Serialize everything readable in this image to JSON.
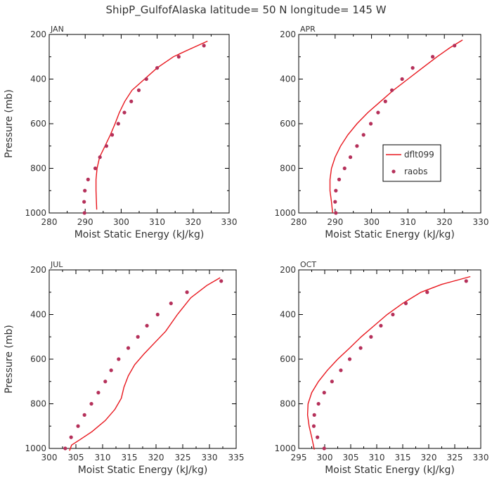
{
  "figure": {
    "title": "ShipP_GulfofAlaska   latitude= 50 N longitude= 145 W",
    "colors": {
      "model": "#e8161d",
      "obs": "#b5305a",
      "axis": "#000000"
    }
  },
  "legend": {
    "entries": [
      "dflt099",
      "raobs"
    ]
  },
  "chart_data": [
    {
      "type": "line",
      "title": "JAN",
      "xlabel": "Moist Static Energy (kJ/kg)",
      "ylabel": "Pressure (mb)",
      "xlim": [
        280,
        330
      ],
      "ylim": [
        1000,
        200
      ],
      "xticks": [
        280,
        290,
        300,
        310,
        320,
        330
      ],
      "yticks": [
        200,
        400,
        600,
        800,
        1000
      ],
      "series": [
        {
          "name": "dflt099",
          "style": "line",
          "x": [
            293.2,
            293.0,
            293.0,
            293.3,
            294.0,
            295.5,
            297.0,
            298.3,
            299.5,
            301.0,
            303.0,
            306.5,
            310.0,
            314.5,
            318.5,
            324.0
          ],
          "y": [
            985,
            900,
            850,
            800,
            750,
            700,
            650,
            600,
            550,
            500,
            450,
            400,
            350,
            300,
            270,
            230
          ]
        },
        {
          "name": "raobs",
          "style": "markers",
          "x": [
            289.8,
            289.7,
            289.9,
            290.8,
            292.8,
            294.1,
            295.9,
            297.5,
            299.2,
            300.9,
            302.8,
            304.9,
            307.0,
            310.0,
            316.0,
            323.0
          ],
          "y": [
            1000,
            950,
            900,
            850,
            800,
            750,
            700,
            650,
            600,
            550,
            500,
            450,
            400,
            350,
            300,
            250
          ]
        }
      ]
    },
    {
      "type": "line",
      "title": "APR",
      "xlabel": "Moist Static Energy (kJ/kg)",
      "ylabel": "",
      "xlim": [
        280,
        330
      ],
      "ylim": [
        1000,
        200
      ],
      "xticks": [
        280,
        290,
        300,
        310,
        320,
        330
      ],
      "yticks": [
        200,
        400,
        600,
        800,
        1000
      ],
      "legend": "right",
      "series": [
        {
          "name": "dflt099",
          "style": "line",
          "x": [
            289.3,
            289.0,
            288.6,
            288.6,
            289.0,
            290.0,
            291.5,
            293.5,
            296.0,
            299.0,
            302.5,
            306.0,
            310.0,
            314.0,
            318.0,
            321.5,
            325.0
          ],
          "y": [
            1000,
            950,
            900,
            850,
            800,
            750,
            700,
            650,
            600,
            550,
            500,
            450,
            400,
            350,
            300,
            260,
            225
          ]
        },
        {
          "name": "raobs",
          "style": "markers",
          "x": [
            290.2,
            290.0,
            290.2,
            291.1,
            292.6,
            294.2,
            296.0,
            297.8,
            299.8,
            301.8,
            303.8,
            305.6,
            308.4,
            311.3,
            316.8,
            322.8
          ],
          "y": [
            1000,
            950,
            900,
            850,
            800,
            750,
            700,
            650,
            600,
            550,
            500,
            450,
            400,
            350,
            300,
            250
          ]
        }
      ]
    },
    {
      "type": "line",
      "title": "JUL",
      "xlabel": "Moist Static Energy (kJ/kg)",
      "ylabel": "Pressure (mb)",
      "xlim": [
        300,
        335
      ],
      "ylim": [
        1000,
        200
      ],
      "xticks": [
        300,
        305,
        310,
        315,
        320,
        325,
        330,
        335
      ],
      "yticks": [
        200,
        400,
        600,
        800,
        1000
      ],
      "series": [
        {
          "name": "dflt099",
          "style": "line",
          "x": [
            303.8,
            304.2,
            305.8,
            308.0,
            310.5,
            312.3,
            313.5,
            314.0,
            314.8,
            316.0,
            317.8,
            319.8,
            321.8,
            324.0,
            326.5,
            329.5,
            332.0
          ],
          "y": [
            1010,
            985,
            960,
            925,
            875,
            825,
            775,
            725,
            675,
            625,
            575,
            525,
            475,
            400,
            325,
            270,
            235
          ]
        },
        {
          "name": "raobs",
          "style": "markers",
          "x": [
            303.0,
            304.1,
            305.4,
            306.6,
            307.9,
            309.2,
            310.5,
            311.6,
            313.0,
            314.8,
            316.6,
            318.3,
            320.3,
            322.8,
            325.8,
            332.2
          ],
          "y": [
            1000,
            950,
            900,
            850,
            800,
            750,
            700,
            650,
            600,
            550,
            500,
            450,
            400,
            350,
            300,
            250
          ]
        }
      ]
    },
    {
      "type": "line",
      "title": "OCT",
      "xlabel": "Moist Static Energy (kJ/kg)",
      "ylabel": "",
      "xlim": [
        295,
        330
      ],
      "ylim": [
        1000,
        200
      ],
      "xticks": [
        295,
        300,
        305,
        310,
        315,
        320,
        325,
        330
      ],
      "yticks": [
        200,
        400,
        600,
        800,
        1000
      ],
      "series": [
        {
          "name": "dflt099",
          "style": "line",
          "x": [
            298.0,
            297.5,
            297.0,
            296.7,
            296.8,
            297.5,
            298.8,
            300.5,
            302.5,
            304.8,
            307.0,
            309.5,
            312.0,
            315.0,
            318.5,
            322.5,
            328.0
          ],
          "y": [
            1005,
            950,
            900,
            850,
            800,
            750,
            700,
            650,
            600,
            550,
            500,
            450,
            400,
            350,
            300,
            265,
            230
          ]
        },
        {
          "name": "raobs",
          "style": "markers",
          "x": [
            299.9,
            298.6,
            297.9,
            298.0,
            298.8,
            299.9,
            301.4,
            303.1,
            304.8,
            306.9,
            308.9,
            310.8,
            313.1,
            315.6,
            319.7,
            327.2
          ],
          "y": [
            1000,
            950,
            900,
            850,
            800,
            750,
            700,
            650,
            600,
            550,
            500,
            450,
            400,
            350,
            300,
            250
          ]
        }
      ]
    }
  ]
}
